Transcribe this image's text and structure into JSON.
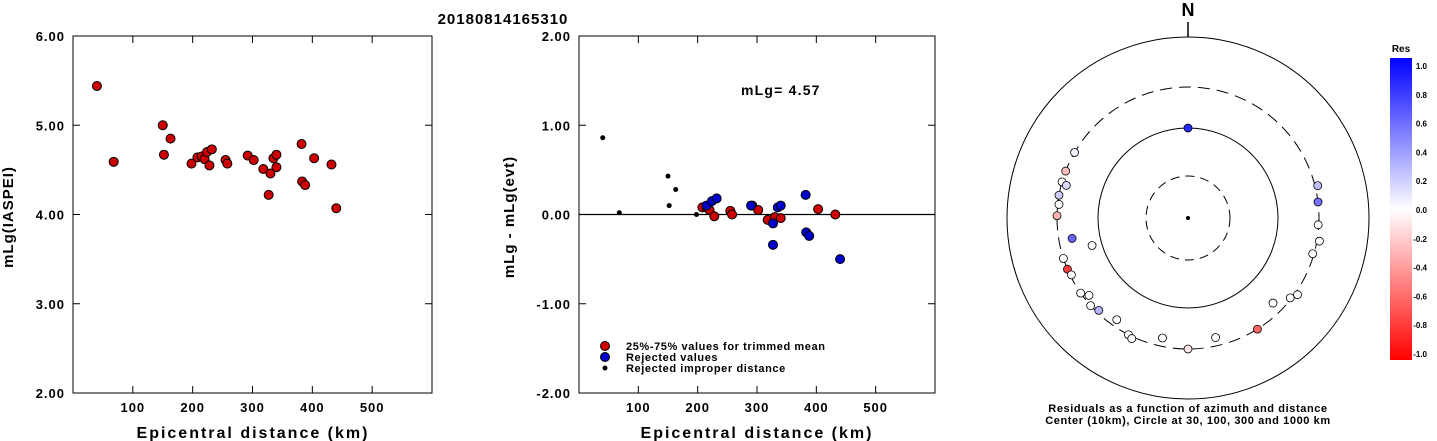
{
  "page": {
    "title": "20180814165310"
  },
  "legend_items": [
    {
      "label": "25%-75% values for trimmed mean",
      "color": "#cc0000",
      "kind": "big"
    },
    {
      "label": "Rejected values",
      "color": "#0000cc",
      "kind": "big"
    },
    {
      "label": "Rejected improper distance",
      "color": "#000000",
      "kind": "small"
    }
  ],
  "chart_data": [
    {
      "type": "scatter",
      "xlabel": "Epicentral distance (km)",
      "ylabel": "mLg(IASPEI)",
      "xlim": [
        0,
        600
      ],
      "ylim": [
        2.0,
        6.0
      ],
      "xticks": [
        "100",
        "200",
        "300",
        "400",
        "500"
      ],
      "yticks": [
        "2.00",
        "3.00",
        "4.00",
        "5.00",
        "6.00"
      ],
      "series": [
        {
          "color": "#cc0000",
          "points": [
            [
              40,
              5.44
            ],
            [
              68,
              4.59
            ],
            [
              150,
              5.0
            ],
            [
              152,
              4.67
            ],
            [
              163,
              4.85
            ],
            [
              198,
              4.57
            ],
            [
              208,
              4.64
            ],
            [
              215,
              4.65
            ],
            [
              220,
              4.62
            ],
            [
              224,
              4.7
            ],
            [
              228,
              4.55
            ],
            [
              232,
              4.73
            ],
            [
              255,
              4.61
            ],
            [
              258,
              4.57
            ],
            [
              292,
              4.66
            ],
            [
              302,
              4.61
            ],
            [
              318,
              4.51
            ],
            [
              327,
              4.22
            ],
            [
              330,
              4.46
            ],
            [
              335,
              4.63
            ],
            [
              340,
              4.53
            ],
            [
              340,
              4.67
            ],
            [
              382,
              4.79
            ],
            [
              383,
              4.37
            ],
            [
              388,
              4.33
            ],
            [
              403,
              4.63
            ],
            [
              432,
              4.56
            ],
            [
              440,
              4.07
            ]
          ]
        }
      ]
    },
    {
      "type": "scatter",
      "xlabel": "Epicentral distance (km)",
      "ylabel": "mLg - mLg(evt)",
      "annotation": "mLg= 4.57",
      "xlim": [
        0,
        600
      ],
      "ylim": [
        -2.0,
        2.0
      ],
      "xticks": [
        "100",
        "200",
        "300",
        "400",
        "500"
      ],
      "yticks": [
        "-2.00",
        "-1.00",
        "0.00",
        "1.00",
        "2.00"
      ],
      "reference_line": 0,
      "series": [
        {
          "name": "25%-75% values for trimmed mean",
          "color": "#cc0000",
          "size": "big",
          "points": [
            [
              208,
              0.08
            ],
            [
              215,
              0.08
            ],
            [
              220,
              0.05
            ],
            [
              228,
              -0.02
            ],
            [
              255,
              0.04
            ],
            [
              258,
              0.0
            ],
            [
              292,
              0.1
            ],
            [
              302,
              0.05
            ],
            [
              318,
              -0.06
            ],
            [
              330,
              -0.03
            ],
            [
              340,
              -0.04
            ],
            [
              403,
              0.06
            ],
            [
              432,
              0.0
            ]
          ]
        },
        {
          "name": "Rejected values",
          "color": "#0000cc",
          "size": "big",
          "points": [
            [
              215,
              0.1
            ],
            [
              224,
              0.15
            ],
            [
              232,
              0.18
            ],
            [
              290,
              0.1
            ],
            [
              327,
              -0.1
            ],
            [
              327,
              -0.34
            ],
            [
              335,
              0.08
            ],
            [
              340,
              0.1
            ],
            [
              382,
              0.22
            ],
            [
              383,
              -0.2
            ],
            [
              388,
              -0.24
            ],
            [
              440,
              -0.5
            ]
          ]
        },
        {
          "name": "Rejected improper distance",
          "color": "#000000",
          "size": "small",
          "points": [
            [
              40,
              0.86
            ],
            [
              68,
              0.02
            ],
            [
              150,
              0.43
            ],
            [
              152,
              0.1
            ],
            [
              163,
              0.28
            ],
            [
              198,
              0.0
            ]
          ]
        }
      ]
    }
  ],
  "polar": {
    "label": "N",
    "caption_line1": "Residuals as a function of azimuth and distance",
    "caption_line2": "Center (10km), Circle at 30, 100, 300 and 1000 km",
    "colorbar_title": "Res",
    "colorbar_ticks": [
      "1.0",
      "0.8",
      "0.6",
      "0.4",
      "0.2",
      "0.0",
      "-0.2",
      "-0.4",
      "-0.6",
      "-0.8",
      "-1.0"
    ],
    "stations": [
      {
        "az": 0,
        "dist": 100,
        "res": 0.85
      },
      {
        "az": 300,
        "dist": 300,
        "res": 0.05
      },
      {
        "az": 291,
        "dist": 300,
        "res": -0.25
      },
      {
        "az": 286,
        "dist": 300,
        "res": 0.0
      },
      {
        "az": 285,
        "dist": 262,
        "res": 0.15
      },
      {
        "az": 280,
        "dist": 300,
        "res": 0.2
      },
      {
        "az": 276,
        "dist": 290,
        "res": 0.0
      },
      {
        "az": 271,
        "dist": 300,
        "res": -0.3
      },
      {
        "az": 260,
        "dist": 210,
        "res": 0.6
      },
      {
        "az": 254,
        "dist": 130,
        "res": 0.0
      },
      {
        "az": 252,
        "dist": 300,
        "res": 0.0
      },
      {
        "az": 247,
        "dist": 300,
        "res": -0.75
      },
      {
        "az": 244,
        "dist": 290,
        "res": 0.0
      },
      {
        "az": 235,
        "dist": 300,
        "res": 0.0
      },
      {
        "az": 232,
        "dist": 260,
        "res": 0.0
      },
      {
        "az": 228,
        "dist": 300,
        "res": 0.0
      },
      {
        "az": 224,
        "dist": 280,
        "res": 0.3
      },
      {
        "az": 215,
        "dist": 250,
        "res": 0.0
      },
      {
        "az": 207,
        "dist": 300,
        "res": 0.0
      },
      {
        "az": 205,
        "dist": 315,
        "res": 0.0
      },
      {
        "az": 192,
        "dist": 240,
        "res": 0.0
      },
      {
        "az": 180,
        "dist": 300,
        "res": -0.1
      },
      {
        "az": 167,
        "dist": 240,
        "res": 0.0
      },
      {
        "az": 148,
        "dist": 300,
        "res": -0.6
      },
      {
        "az": 135,
        "dist": 225,
        "res": 0.0
      },
      {
        "az": 128,
        "dist": 290,
        "res": 0.0
      },
      {
        "az": 125,
        "dist": 320,
        "res": 0.0
      },
      {
        "az": 106,
        "dist": 290,
        "res": 0.0
      },
      {
        "az": 100,
        "dist": 318,
        "res": 0.0
      },
      {
        "az": 93,
        "dist": 295,
        "res": 0.0
      },
      {
        "az": 83,
        "dist": 300,
        "res": 0.55
      },
      {
        "az": 76,
        "dist": 320,
        "res": 0.25
      }
    ]
  }
}
